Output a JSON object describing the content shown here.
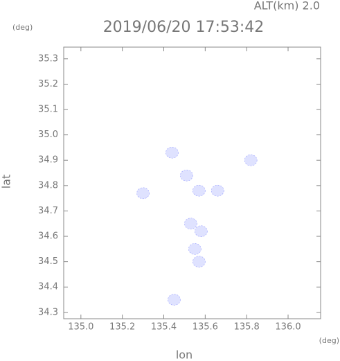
{
  "header": {
    "altitude": "ALT(km) 2.0",
    "y_unit": "(deg)",
    "x_unit": "(deg)"
  },
  "chart_data": {
    "type": "scatter",
    "title": "2019/06/20 17:53:42",
    "x_label": "lon",
    "y_label": "lat",
    "xlim": [
      134.917,
      136.157
    ],
    "ylim": [
      34.275,
      35.346
    ],
    "xticks": [
      {
        "value": 135,
        "label": "135.0"
      },
      135.2,
      135.4,
      135.6,
      135.8,
      {
        "value": 136,
        "label": "136.0"
      }
    ],
    "yticks": [
      34.3,
      34.4,
      34.5,
      34.6,
      34.7,
      34.8,
      34.9,
      {
        "value": 35,
        "label": "35.0"
      },
      35.1,
      35.2,
      35.3
    ],
    "series": [
      {
        "color": "#dfe2ff",
        "x": [
          135.44,
          135.51,
          135.57,
          135.66,
          135.82,
          135.3,
          135.53,
          135.58,
          135.55,
          135.57,
          135.45
        ],
        "values": [
          34.93,
          34.84,
          34.78,
          34.78,
          34.9,
          34.77,
          34.65,
          34.62,
          34.55,
          34.5,
          34.35
        ]
      }
    ]
  }
}
